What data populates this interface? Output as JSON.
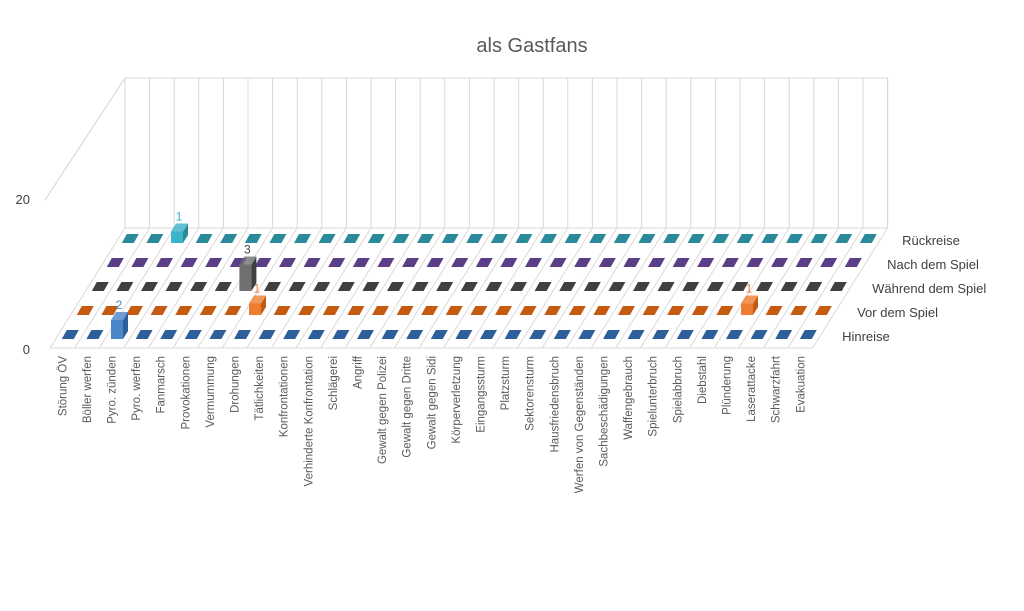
{
  "chart_data": {
    "type": "bar3d",
    "title": "als Gastfans",
    "yticks": [
      "0",
      "20"
    ],
    "ylim": [
      0,
      20
    ],
    "grid": true,
    "categories": [
      "Störung ÖV",
      "Böller werfen",
      "Pyro. zünden",
      "Pyro. werfen",
      "Fanmarsch",
      "Provokationen",
      "Vermummung",
      "Drohungen",
      "Tätlichkeiten",
      "Konfrontationen",
      "Verhinderte Konfrontation",
      "Schlägerei",
      "Angriff",
      "Gewalt gegen Polizei",
      "Gewalt gegen Dritte",
      "Gewalt gegen Sidi",
      "Körperverletzung",
      "Eingangssturm",
      "Platzsturm",
      "Sektorensturm",
      "Hausfriedensbruch",
      "Werfen von Gegenständen",
      "Sachbeschädigungen",
      "Waffengebrauch",
      "Spielunterbruch",
      "Spielabbruch",
      "Diebstahl",
      "Plünderung",
      "Laserattacke",
      "Schwarzfahrt",
      "Evakuation"
    ],
    "series": [
      {
        "name": "Hinreise",
        "color": "#2e5f9a",
        "highlight": "#4a86c8",
        "values": {
          "Pyro. zünden": 2
        }
      },
      {
        "name": "Vor dem Spiel",
        "color": "#c55a11",
        "highlight": "#ed7d31",
        "values": {
          "Drohungen": 1,
          "Plünderung": 1
        }
      },
      {
        "name": "Während dem Spiel",
        "color": "#404040",
        "highlight": "#707070",
        "values": {
          "Vermummung": 3
        }
      },
      {
        "name": "Nach dem Spiel",
        "color": "#5b3f86",
        "highlight": "#7e5ca8",
        "values": {}
      },
      {
        "name": "Rückreise",
        "color": "#2a8a9a",
        "highlight": "#3bb3c8",
        "values": {
          "Pyro. zünden": 1
        }
      }
    ]
  }
}
